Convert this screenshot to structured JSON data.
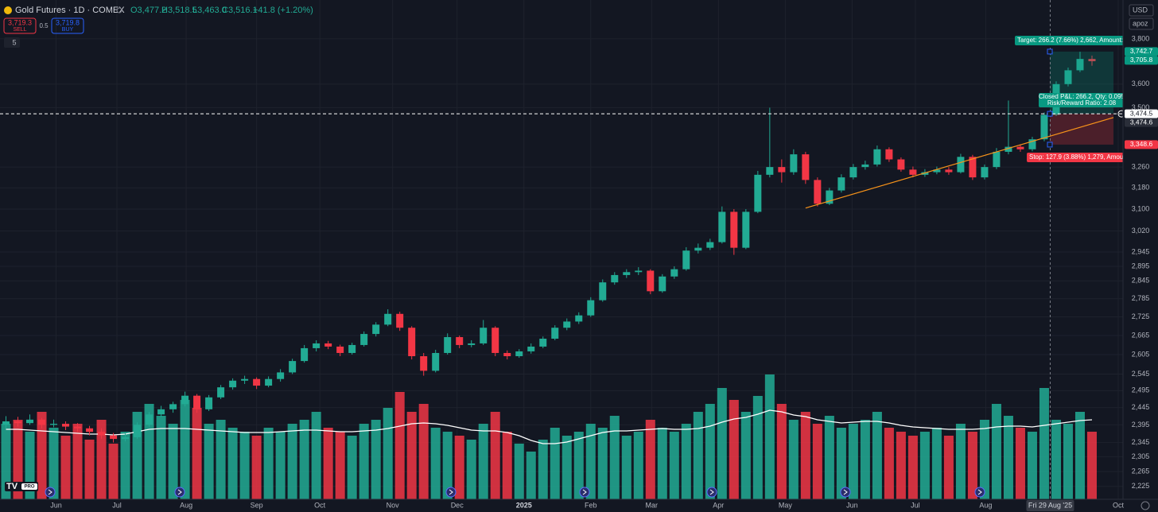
{
  "header": {
    "symbol": "Gold Futures · 1D · COMEX",
    "open": "O3,477.2",
    "high": "H3,518.5",
    "low": "L3,463.0",
    "close": "C3,516.1",
    "change": "+41.8 (+1.20%)"
  },
  "trade": {
    "sell_price": "3,719.3",
    "sell": "SELL",
    "spread": "0.5",
    "buy_price": "3,719.8",
    "buy": "BUY",
    "collapse": "5"
  },
  "toolbar": {
    "currency": "USD",
    "account": "apoz"
  },
  "chart_data": {
    "type": "candlestick",
    "log_scale": true,
    "grid": true,
    "ylim": [
      2191,
      3981
    ],
    "yticks": [
      {
        "value": 3800,
        "label": "3,800"
      },
      {
        "value": 3600,
        "label": "3,600"
      },
      {
        "value": 3500,
        "label": "3,500"
      },
      {
        "value": 3260,
        "label": "3,260"
      },
      {
        "value": 3180,
        "label": "3,180"
      },
      {
        "value": 3100,
        "label": "3,100"
      },
      {
        "value": 3020,
        "label": "3,020"
      },
      {
        "value": 2945,
        "label": "2,945"
      },
      {
        "value": 2895,
        "label": "2,895"
      },
      {
        "value": 2845,
        "label": "2,845"
      },
      {
        "value": 2785,
        "label": "2,785"
      },
      {
        "value": 2725,
        "label": "2,725"
      },
      {
        "value": 2665,
        "label": "2,665"
      },
      {
        "value": 2605,
        "label": "2,605"
      },
      {
        "value": 2545,
        "label": "2,545"
      },
      {
        "value": 2495,
        "label": "2,495"
      },
      {
        "value": 2445,
        "label": "2,445"
      },
      {
        "value": 2395,
        "label": "2,395"
      },
      {
        "value": 2345,
        "label": "2,345"
      },
      {
        "value": 2305,
        "label": "2,305"
      },
      {
        "value": 2265,
        "label": "2,265"
      },
      {
        "value": 2225,
        "label": "2,225"
      }
    ],
    "xlim": [
      -0.5,
      93.6
    ],
    "xticks": [
      {
        "value": 4.2,
        "label": "Jun"
      },
      {
        "value": 9.3,
        "label": "Jul"
      },
      {
        "value": 15.1,
        "label": "Aug"
      },
      {
        "value": 21,
        "label": "Sep"
      },
      {
        "value": 26.3,
        "label": "Oct"
      },
      {
        "value": 32.4,
        "label": "Nov"
      },
      {
        "value": 37.8,
        "label": "Dec"
      },
      {
        "value": 43.4,
        "label": "2025"
      },
      {
        "value": 49,
        "label": "Feb"
      },
      {
        "value": 54.1,
        "label": "Mar"
      },
      {
        "value": 59.7,
        "label": "Apr"
      },
      {
        "value": 65.3,
        "label": "May"
      },
      {
        "value": 70.9,
        "label": "Jun"
      },
      {
        "value": 76.2,
        "label": "Jul"
      },
      {
        "value": 82.1,
        "label": "Aug"
      },
      {
        "value": 93.2,
        "label": "Oct"
      }
    ],
    "up_color": "#22ab94",
    "down_color": "#f23645",
    "candles": [
      [
        2395,
        2420,
        2385,
        2405
      ],
      [
        2405,
        2418,
        2390,
        2400
      ],
      [
        2400,
        2425,
        2395,
        2410
      ],
      [
        2410,
        2415,
        2385,
        2395
      ],
      [
        2395,
        2410,
        2388,
        2398
      ],
      [
        2398,
        2405,
        2380,
        2390
      ],
      [
        2390,
        2400,
        2375,
        2385
      ],
      [
        2385,
        2392,
        2365,
        2375
      ],
      [
        2375,
        2385,
        2355,
        2365
      ],
      [
        2365,
        2372,
        2345,
        2355
      ],
      [
        2355,
        2370,
        2348,
        2360
      ],
      [
        2360,
        2402,
        2355,
        2395
      ],
      [
        2395,
        2432,
        2390,
        2425
      ],
      [
        2425,
        2450,
        2418,
        2440
      ],
      [
        2440,
        2462,
        2430,
        2455
      ],
      [
        2455,
        2492,
        2448,
        2480
      ],
      [
        2480,
        2485,
        2430,
        2440
      ],
      [
        2440,
        2482,
        2435,
        2475
      ],
      [
        2475,
        2512,
        2470,
        2505
      ],
      [
        2505,
        2532,
        2498,
        2525
      ],
      [
        2525,
        2540,
        2515,
        2530
      ],
      [
        2530,
        2535,
        2500,
        2510
      ],
      [
        2510,
        2538,
        2505,
        2530
      ],
      [
        2530,
        2560,
        2522,
        2550
      ],
      [
        2550,
        2592,
        2545,
        2585
      ],
      [
        2585,
        2635,
        2580,
        2625
      ],
      [
        2625,
        2650,
        2615,
        2640
      ],
      [
        2640,
        2648,
        2622,
        2630
      ],
      [
        2630,
        2636,
        2600,
        2610
      ],
      [
        2610,
        2642,
        2605,
        2635
      ],
      [
        2635,
        2678,
        2630,
        2670
      ],
      [
        2670,
        2708,
        2662,
        2700
      ],
      [
        2700,
        2750,
        2695,
        2735
      ],
      [
        2735,
        2742,
        2680,
        2690
      ],
      [
        2690,
        2695,
        2590,
        2600
      ],
      [
        2600,
        2610,
        2540,
        2555
      ],
      [
        2555,
        2620,
        2550,
        2610
      ],
      [
        2610,
        2672,
        2605,
        2660
      ],
      [
        2660,
        2665,
        2625,
        2635
      ],
      [
        2635,
        2650,
        2628,
        2640
      ],
      [
        2640,
        2715,
        2635,
        2690
      ],
      [
        2690,
        2695,
        2600,
        2610
      ],
      [
        2610,
        2618,
        2590,
        2600
      ],
      [
        2600,
        2622,
        2595,
        2615
      ],
      [
        2615,
        2640,
        2608,
        2630
      ],
      [
        2630,
        2662,
        2625,
        2655
      ],
      [
        2655,
        2698,
        2650,
        2690
      ],
      [
        2690,
        2720,
        2682,
        2710
      ],
      [
        2710,
        2740,
        2702,
        2730
      ],
      [
        2730,
        2790,
        2725,
        2780
      ],
      [
        2780,
        2850,
        2775,
        2840
      ],
      [
        2840,
        2875,
        2832,
        2865
      ],
      [
        2865,
        2885,
        2855,
        2875
      ],
      [
        2875,
        2892,
        2865,
        2880
      ],
      [
        2880,
        2885,
        2800,
        2810
      ],
      [
        2810,
        2868,
        2805,
        2860
      ],
      [
        2860,
        2895,
        2852,
        2885
      ],
      [
        2885,
        2962,
        2880,
        2950
      ],
      [
        2950,
        2975,
        2940,
        2960
      ],
      [
        2960,
        2992,
        2952,
        2980
      ],
      [
        2980,
        3110,
        2975,
        3090
      ],
      [
        3090,
        3100,
        2935,
        2960
      ],
      [
        2960,
        3100,
        2955,
        3090
      ],
      [
        3090,
        3245,
        3085,
        3230
      ],
      [
        3230,
        3500,
        3220,
        3260
      ],
      [
        3260,
        3290,
        3200,
        3240
      ],
      [
        3240,
        3330,
        3230,
        3310
      ],
      [
        3310,
        3320,
        3195,
        3210
      ],
      [
        3210,
        3220,
        3110,
        3120
      ],
      [
        3120,
        3180,
        3115,
        3170
      ],
      [
        3170,
        3232,
        3162,
        3220
      ],
      [
        3220,
        3272,
        3212,
        3260
      ],
      [
        3260,
        3285,
        3250,
        3270
      ],
      [
        3270,
        3345,
        3262,
        3330
      ],
      [
        3330,
        3338,
        3280,
        3290
      ],
      [
        3290,
        3298,
        3242,
        3250
      ],
      [
        3250,
        3262,
        3220,
        3230
      ],
      [
        3230,
        3252,
        3222,
        3240
      ],
      [
        3240,
        3262,
        3232,
        3250
      ],
      [
        3250,
        3260,
        3230,
        3240
      ],
      [
        3240,
        3312,
        3235,
        3300
      ],
      [
        3300,
        3308,
        3210,
        3220
      ],
      [
        3220,
        3270,
        3212,
        3260
      ],
      [
        3260,
        3335,
        3252,
        3320
      ],
      [
        3320,
        3530,
        3310,
        3340
      ],
      [
        3340,
        3350,
        3320,
        3330
      ],
      [
        3330,
        3380,
        3322,
        3370
      ],
      [
        3370,
        3480,
        3362,
        3470
      ],
      [
        3470,
        3612,
        3465,
        3600
      ],
      [
        3600,
        3672,
        3590,
        3660
      ],
      [
        3660,
        3742,
        3652,
        3710
      ],
      [
        3710,
        3725,
        3680,
        3700
      ]
    ],
    "volume": [
      95,
      100,
      85,
      110,
      90,
      80,
      95,
      75,
      100,
      70,
      85,
      110,
      120,
      105,
      95,
      125,
      115,
      95,
      100,
      90,
      85,
      80,
      90,
      85,
      95,
      100,
      110,
      90,
      85,
      80,
      95,
      100,
      115,
      135,
      110,
      120,
      90,
      85,
      80,
      75,
      95,
      110,
      85,
      70,
      60,
      75,
      90,
      80,
      85,
      95,
      90,
      105,
      80,
      85,
      100,
      90,
      85,
      95,
      110,
      120,
      140,
      125,
      110,
      130,
      157,
      120,
      100,
      110,
      95,
      105,
      90,
      95,
      100,
      110,
      90,
      85,
      80,
      85,
      90,
      80,
      95,
      85,
      100,
      120,
      105,
      90,
      85,
      140,
      100,
      95,
      110,
      85
    ],
    "volume_ma": [
      88,
      88,
      87,
      86,
      85,
      84,
      83,
      82,
      82,
      81,
      82,
      85,
      88,
      89,
      89,
      89,
      88,
      87,
      86,
      85,
      84,
      84,
      84,
      85,
      86,
      87,
      87,
      86,
      85,
      85,
      86,
      87,
      89,
      92,
      95,
      96,
      95,
      93,
      90,
      87,
      86,
      86,
      84,
      80,
      74,
      70,
      70,
      72,
      76,
      80,
      84,
      86,
      86,
      87,
      88,
      89,
      88,
      88,
      89,
      92,
      97,
      101,
      103,
      107,
      112,
      110,
      106,
      104,
      100,
      98,
      96,
      97,
      98,
      98,
      96,
      93,
      91,
      90,
      89,
      88,
      88,
      88,
      89,
      91,
      92,
      92,
      91,
      93,
      95,
      97,
      99,
      100
    ],
    "volume_ma_color": "#ffffff",
    "price_labels": [
      {
        "value": 3742.7,
        "label": "3,742.7",
        "color": "#089981"
      },
      {
        "value": 3705.8,
        "label": "3,705.8",
        "color": "#089981"
      },
      {
        "value": 3474.5,
        "label": "3,474.5",
        "color": "#ffffff"
      },
      {
        "value": 3474.6,
        "label": "3,474.6",
        "color": "#2a2e39"
      },
      {
        "value": 3348.6,
        "label": "3,348.6",
        "color": "#f23645"
      }
    ],
    "trendline": {
      "x": [
        67,
        92.8
      ],
      "y": [
        3104,
        3459
      ],
      "color": "#f7931a"
    },
    "crosshair": {
      "value": 87.5,
      "label": "Fri 29 Aug '25"
    },
    "annotations": {
      "target": "Target: 266.2 (7.66%) 2,662, Amount: 3",
      "pnl": "Closed P&L: 266.2, Qty: 0.095",
      "rr": "Risk/Reward Ratio: 2.08",
      "stop": "Stop: 127.9 (3.88%) 1,279, Amount"
    }
  }
}
